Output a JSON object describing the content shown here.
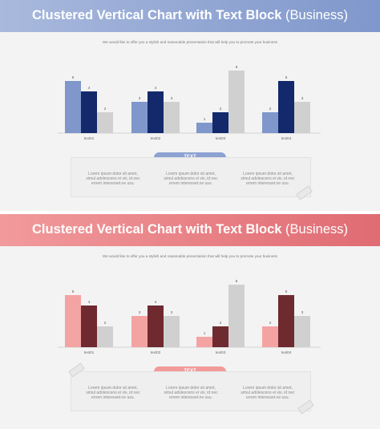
{
  "slides": [
    {
      "title_main": "Clustered Vertical Chart with Text Block",
      "title_sub": "(Business)",
      "subtitle": "We would like to offer you a stylish and reasonable presentation that will help you to promote your business",
      "button_label": "TEXT",
      "text_blocks": [
        "Lorem ipsum dolor sit amet, simul adolescens ei vix, id nec errem interesset.ne usu.",
        "Lorem ipsum dolor sit amet, simul adolescens ei vix, id nec errem interesset.ne usu.",
        "Lorem ipsum dolor sit amet, simul adolescens ei vix, id nec errem interesset.ne usu."
      ],
      "colors": {
        "banner_start": "#a9b9dd",
        "banner_end": "#7f97cb",
        "series": [
          "#7f97cb",
          "#13296b",
          "#d0d0d0"
        ],
        "pill": "#8da2d2"
      }
    },
    {
      "title_main": "Clustered Vertical Chart with Text Block",
      "title_sub": "(Business)",
      "subtitle": "We would like to offer you a stylish and reasonable presentation that will help you to promote your business",
      "button_label": "TEXT",
      "text_blocks": [
        "Lorem ipsum dolor sit amet, simul adolescens ei vix, id nec errem interesset.ne usu.",
        "Lorem ipsum dolor sit amet, simul adolescens ei vix, id nec errem interesset.ne usu.",
        "Lorem ipsum dolor sit amet, simul adolescens ei vix, id nec errem interesset.ne usu."
      ],
      "colors": {
        "banner_start": "#f19a9c",
        "banner_end": "#e06b73",
        "series": [
          "#f4a3a3",
          "#6e2a2f",
          "#d0d0d0"
        ],
        "pill": "#f39a9a"
      }
    }
  ],
  "chart_data": [
    {
      "type": "bar",
      "categories": [
        "text01",
        "text02",
        "text03",
        "text04"
      ],
      "series": [
        {
          "values": [
            5,
            3,
            1,
            2
          ]
        },
        {
          "values": [
            4,
            4,
            2,
            5
          ]
        },
        {
          "values": [
            2,
            3,
            6,
            3
          ]
        }
      ],
      "ylim": [
        0,
        6
      ],
      "grid": false
    },
    {
      "type": "bar",
      "categories": [
        "text01",
        "text02",
        "text03",
        "text04"
      ],
      "series": [
        {
          "values": [
            5,
            3,
            1,
            2
          ]
        },
        {
          "values": [
            4,
            4,
            2,
            5
          ]
        },
        {
          "values": [
            2,
            3,
            6,
            3
          ]
        }
      ],
      "ylim": [
        0,
        6
      ],
      "grid": false
    }
  ]
}
